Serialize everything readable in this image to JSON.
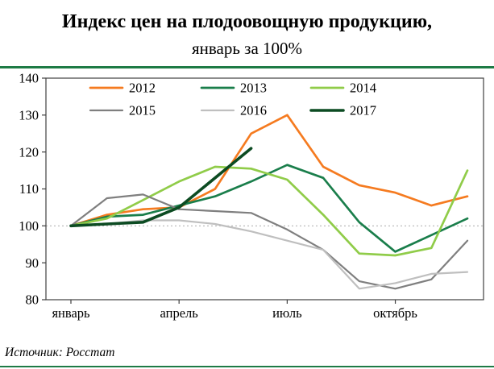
{
  "theme": {
    "accent_green": "#1E7B45",
    "plot_border_color": "#404040",
    "reference_line_color": "#ABABAB",
    "text_color": "#000000"
  },
  "footer": {
    "source": "Источник: Росстат"
  },
  "chart_data": {
    "type": "line",
    "title": "Индекс цен на плодоовощную продукцию,",
    "subtitle": "январь за 100%",
    "xlabel": "",
    "ylabel": "",
    "xlim": [
      1,
      12
    ],
    "ylim": [
      80,
      140
    ],
    "y_ticks": [
      80,
      90,
      100,
      110,
      120,
      130,
      140
    ],
    "x_ticks": [
      {
        "x": 1,
        "label": "январь"
      },
      {
        "x": 4,
        "label": "апрель"
      },
      {
        "x": 7,
        "label": "июль"
      },
      {
        "x": 10,
        "label": "октябрь"
      }
    ],
    "grid": "off",
    "reference_line_y": 100,
    "legend_position": "top-inside",
    "legend_rows": [
      [
        "2012",
        "2013",
        "2014"
      ],
      [
        "2015",
        "2016",
        "2017"
      ]
    ],
    "series": [
      {
        "name": "2012",
        "color": "#F57B20",
        "line_width": 2.7,
        "x": [
          1,
          2,
          3,
          4,
          5,
          6,
          7,
          8,
          9,
          10,
          11,
          12
        ],
        "values": [
          100,
          103,
          104.5,
          105,
          110,
          125,
          130,
          116,
          111,
          109,
          105.5,
          108
        ]
      },
      {
        "name": "2013",
        "color": "#1A7E4B",
        "line_width": 2.7,
        "x": [
          1,
          2,
          3,
          4,
          5,
          6,
          7,
          8,
          9,
          10,
          11,
          12
        ],
        "values": [
          100,
          102.5,
          103,
          105.5,
          108,
          112,
          116.5,
          113,
          101,
          93,
          97.5,
          102
        ]
      },
      {
        "name": "2014",
        "color": "#90CC49",
        "line_width": 2.7,
        "x": [
          1,
          2,
          3,
          4,
          5,
          6,
          7,
          8,
          9,
          10,
          11,
          12
        ],
        "values": [
          100,
          102,
          107,
          112,
          116,
          115.5,
          112.5,
          103,
          92.5,
          92,
          94,
          115
        ]
      },
      {
        "name": "2015",
        "color": "#7F7F7F",
        "line_width": 2.2,
        "x": [
          1,
          2,
          3,
          4,
          5,
          6,
          7,
          8,
          9,
          10,
          11,
          12
        ],
        "values": [
          100,
          107.5,
          108.5,
          104.5,
          104,
          103.5,
          99,
          93.5,
          85,
          83,
          85.5,
          96
        ]
      },
      {
        "name": "2016",
        "color": "#BFBFBF",
        "line_width": 2.2,
        "x": [
          1,
          2,
          3,
          4,
          5,
          6,
          7,
          8,
          9,
          10,
          11,
          12
        ],
        "values": [
          100,
          100.5,
          101.5,
          101.5,
          100.5,
          98.5,
          96,
          93.5,
          83,
          84.5,
          87,
          87.5
        ]
      },
      {
        "name": "2017",
        "color": "#0C4B22",
        "line_width": 3.6,
        "x": [
          1,
          2,
          3,
          4,
          5,
          6
        ],
        "values": [
          100,
          100.5,
          101,
          105,
          113,
          121
        ]
      }
    ]
  }
}
